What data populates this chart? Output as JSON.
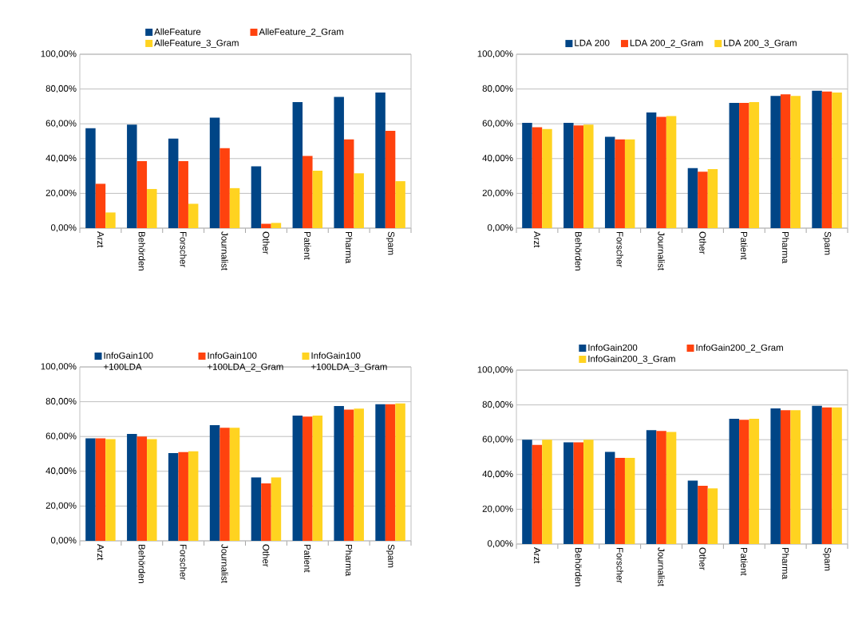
{
  "chart_data": [
    {
      "type": "bar",
      "categories": [
        "Arzt",
        "Behörden",
        "Forscher",
        "Journalist",
        "Other",
        "Patient",
        "Pharma",
        "Spam"
      ],
      "series": [
        {
          "name": "AlleFeature",
          "color": "#004586",
          "values": [
            57.5,
            59.5,
            51.5,
            63.5,
            35.5,
            72.5,
            75.5,
            78
          ]
        },
        {
          "name": "AlleFeature_2_Gram",
          "color": "#ff420e",
          "values": [
            25.5,
            38.5,
            38.5,
            46,
            2.5,
            41.5,
            51,
            56
          ]
        },
        {
          "name": "AlleFeature_3_Gram",
          "color": "#ffd320",
          "values": [
            9,
            22.5,
            14,
            23,
            3,
            33,
            31.5,
            27
          ]
        }
      ],
      "ylim": [
        0,
        100
      ],
      "yticks": [
        {
          "value": 0,
          "label": "0,00%"
        },
        {
          "value": 20,
          "label": "20,00%"
        },
        {
          "value": 40,
          "label": "40,00%"
        },
        {
          "value": 60,
          "label": "60,00%"
        },
        {
          "value": 80,
          "label": "80,00%"
        },
        {
          "value": 100,
          "label": "100,00%"
        }
      ],
      "grid": "y",
      "legend": "top"
    },
    {
      "type": "bar",
      "categories": [
        "Arzt",
        "Behörden",
        "Forscher",
        "Journalist",
        "Other",
        "Patient",
        "Pharma",
        "Spam"
      ],
      "series": [
        {
          "name": "LDA 200",
          "color": "#004586",
          "values": [
            60.5,
            60.5,
            52.5,
            66.5,
            34.5,
            72,
            76,
            79
          ]
        },
        {
          "name": "LDA 200_2_Gram",
          "color": "#ff420e",
          "values": [
            58,
            59,
            51,
            64,
            32.5,
            72,
            77,
            78.5
          ]
        },
        {
          "name": "LDA 200_3_Gram",
          "color": "#ffd320",
          "values": [
            57,
            59.5,
            51,
            64.5,
            34,
            72.5,
            76,
            78
          ]
        }
      ],
      "ylim": [
        0,
        100
      ],
      "yticks": [
        {
          "value": 0,
          "label": "0,00%"
        },
        {
          "value": 20,
          "label": "20,00%"
        },
        {
          "value": 40,
          "label": "40,00%"
        },
        {
          "value": 60,
          "label": "60,00%"
        },
        {
          "value": 80,
          "label": "80,00%"
        },
        {
          "value": 100,
          "label": "100,00%"
        }
      ],
      "grid": "y",
      "legend": "top"
    },
    {
      "type": "bar",
      "categories": [
        "Arzt",
        "Behörden",
        "Forscher",
        "Journalist",
        "Other",
        "Patient",
        "Pharma",
        "Spam"
      ],
      "series": [
        {
          "name": "InfoGain100 +100LDA",
          "color": "#004586",
          "values": [
            59,
            61.5,
            50.5,
            66.5,
            36.5,
            72,
            77.5,
            78.5
          ]
        },
        {
          "name": "InfoGain100 +100LDA_2_Gram",
          "color": "#ff420e",
          "values": [
            59,
            60,
            51,
            65,
            33,
            71.5,
            75.5,
            78.5
          ]
        },
        {
          "name": "InfoGain100 +100LDA_3_Gram",
          "color": "#ffd320",
          "values": [
            58.5,
            58.5,
            51.5,
            65,
            36.5,
            72,
            76,
            79
          ]
        }
      ],
      "ylim": [
        0,
        100
      ],
      "yticks": [
        {
          "value": 0,
          "label": "0,00%"
        },
        {
          "value": 20,
          "label": "20,00%"
        },
        {
          "value": 40,
          "label": "40,00%"
        },
        {
          "value": 60,
          "label": "60,00%"
        },
        {
          "value": 80,
          "label": "80,00%"
        },
        {
          "value": 100,
          "label": "100,00%"
        }
      ],
      "grid": "y",
      "legend": "top"
    },
    {
      "type": "bar",
      "categories": [
        "Arzt",
        "Behörden",
        "Forscher",
        "Journalist",
        "Other",
        "Patient",
        "Pharma",
        "Spam"
      ],
      "series": [
        {
          "name": "InfoGain200",
          "color": "#004586",
          "values": [
            60,
            58.5,
            53,
            65.5,
            36.5,
            72,
            78,
            79.5
          ]
        },
        {
          "name": "InfoGain200_2_Gram",
          "color": "#ff420e",
          "values": [
            57,
            58.5,
            49.5,
            65,
            33.5,
            71.5,
            77,
            78.5
          ]
        },
        {
          "name": "InfoGain200_3_Gram",
          "color": "#ffd320",
          "values": [
            60,
            60,
            49.5,
            64.5,
            32,
            72,
            77,
            78.5
          ]
        }
      ],
      "ylim": [
        0,
        100
      ],
      "yticks": [
        {
          "value": 0,
          "label": "0,00%"
        },
        {
          "value": 20,
          "label": "20,00%"
        },
        {
          "value": 40,
          "label": "40,00%"
        },
        {
          "value": 60,
          "label": "60,00%"
        },
        {
          "value": 80,
          "label": "80,00%"
        },
        {
          "value": 100,
          "label": "100,00%"
        }
      ],
      "grid": "y",
      "legend": "top"
    }
  ]
}
